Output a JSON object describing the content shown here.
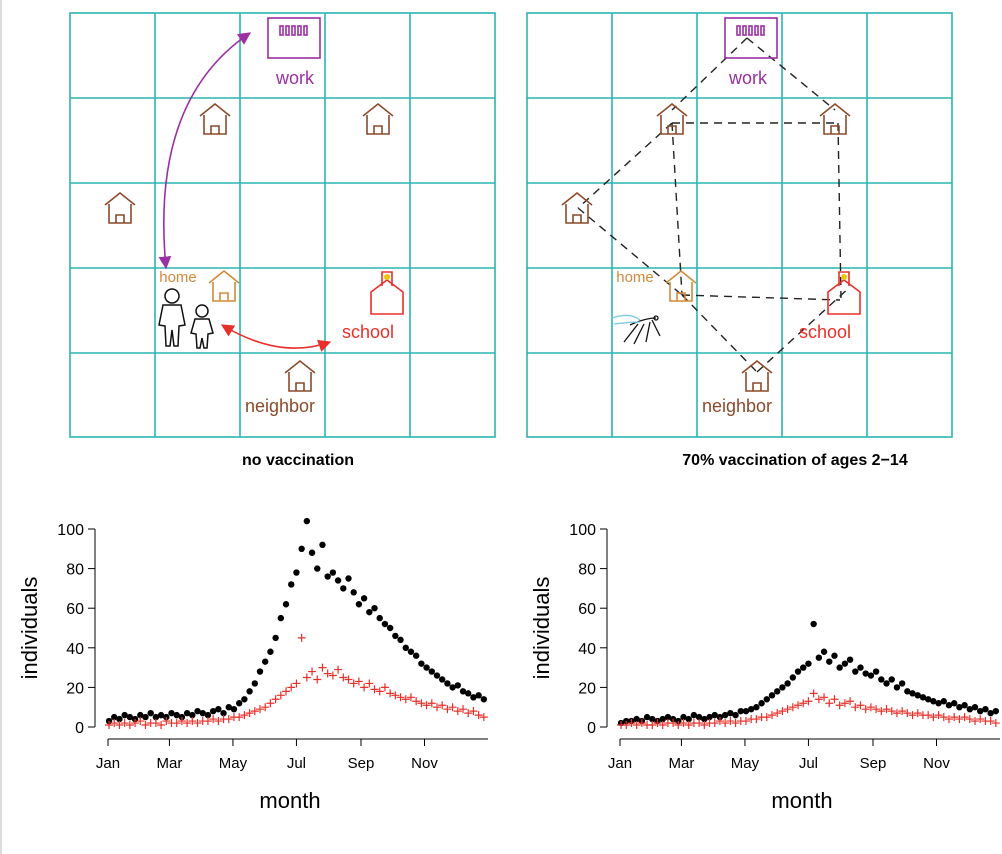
{
  "diagrams": [
    {
      "title": "no vaccination",
      "labels": {
        "work": "work",
        "home": "home",
        "school": "school",
        "neighbor": "neighbor"
      }
    },
    {
      "title": "70% vaccination of ages 2−14",
      "labels": {
        "work": "work",
        "home": "home",
        "school": "school",
        "neighbor": "neighbor"
      }
    }
  ],
  "chart_data": [
    {
      "type": "scatter",
      "xlabel": "month",
      "ylabel": "individuals",
      "xlim": [
        0,
        365
      ],
      "xticks": [
        {
          "value": 0,
          "label": "Jan"
        },
        {
          "value": 59,
          "label": "Mar"
        },
        {
          "value": 120,
          "label": "May"
        },
        {
          "value": 181,
          "label": "Jul"
        },
        {
          "value": 243,
          "label": "Sep"
        },
        {
          "value": 304,
          "label": "Nov"
        }
      ],
      "ylim": [
        0,
        105
      ],
      "yticks": [
        0,
        20,
        40,
        60,
        80,
        100
      ],
      "x": [
        1,
        6,
        11,
        16,
        21,
        26,
        31,
        36,
        41,
        46,
        51,
        56,
        61,
        66,
        71,
        76,
        81,
        86,
        91,
        96,
        101,
        106,
        111,
        116,
        121,
        126,
        131,
        136,
        141,
        146,
        151,
        156,
        161,
        166,
        171,
        176,
        181,
        186,
        191,
        196,
        201,
        206,
        211,
        216,
        221,
        226,
        231,
        236,
        241,
        246,
        251,
        256,
        261,
        266,
        271,
        276,
        281,
        286,
        291,
        296,
        301,
        306,
        311,
        316,
        321,
        326,
        331,
        336,
        341,
        346,
        351,
        356,
        361
      ],
      "series": [
        {
          "color": "#000000",
          "marker": "circle",
          "values": [
            3,
            5,
            4,
            6,
            5,
            4,
            6,
            5,
            7,
            5,
            6,
            5,
            7,
            6,
            5,
            7,
            6,
            8,
            7,
            6,
            8,
            9,
            7,
            10,
            9,
            12,
            14,
            18,
            22,
            28,
            33,
            38,
            45,
            55,
            62,
            72,
            78,
            90,
            104,
            88,
            80,
            92,
            76,
            78,
            74,
            70,
            75,
            68,
            62,
            65,
            58,
            60,
            55,
            52,
            50,
            46,
            44,
            40,
            38,
            36,
            32,
            30,
            28,
            26,
            24,
            22,
            20,
            21,
            18,
            17,
            15,
            16,
            14
          ]
        },
        {
          "color": "#e8302a",
          "marker": "plus",
          "values": [
            1,
            2,
            1,
            2,
            1,
            2,
            3,
            1,
            2,
            2,
            1,
            3,
            2,
            2,
            3,
            2,
            3,
            2,
            3,
            3,
            4,
            3,
            4,
            4,
            5,
            5,
            6,
            7,
            8,
            9,
            10,
            12,
            14,
            16,
            18,
            20,
            22,
            45,
            25,
            28,
            24,
            30,
            27,
            26,
            29,
            25,
            24,
            22,
            23,
            20,
            22,
            19,
            18,
            20,
            17,
            16,
            15,
            14,
            15,
            13,
            12,
            11,
            12,
            10,
            11,
            9,
            10,
            8,
            9,
            7,
            8,
            6,
            5
          ]
        }
      ]
    },
    {
      "type": "scatter",
      "xlabel": "month",
      "ylabel": "individuals",
      "xlim": [
        0,
        365
      ],
      "xticks": [
        {
          "value": 0,
          "label": "Jan"
        },
        {
          "value": 59,
          "label": "Mar"
        },
        {
          "value": 120,
          "label": "May"
        },
        {
          "value": 181,
          "label": "Jul"
        },
        {
          "value": 243,
          "label": "Sep"
        },
        {
          "value": 304,
          "label": "Nov"
        }
      ],
      "ylim": [
        0,
        105
      ],
      "yticks": [
        0,
        20,
        40,
        60,
        80,
        100
      ],
      "x": [
        1,
        6,
        11,
        16,
        21,
        26,
        31,
        36,
        41,
        46,
        51,
        56,
        61,
        66,
        71,
        76,
        81,
        86,
        91,
        96,
        101,
        106,
        111,
        116,
        121,
        126,
        131,
        136,
        141,
        146,
        151,
        156,
        161,
        166,
        171,
        176,
        181,
        186,
        191,
        196,
        201,
        206,
        211,
        216,
        221,
        226,
        231,
        236,
        241,
        246,
        251,
        256,
        261,
        266,
        271,
        276,
        281,
        286,
        291,
        296,
        301,
        306,
        311,
        316,
        321,
        326,
        331,
        336,
        341,
        346,
        351,
        356,
        361
      ],
      "series": [
        {
          "color": "#000000",
          "marker": "circle",
          "values": [
            2,
            3,
            3,
            4,
            3,
            5,
            4,
            3,
            4,
            5,
            4,
            3,
            5,
            4,
            6,
            5,
            4,
            5,
            6,
            5,
            6,
            7,
            6,
            8,
            8,
            9,
            10,
            12,
            14,
            16,
            18,
            20,
            22,
            25,
            28,
            30,
            32,
            52,
            35,
            38,
            33,
            36,
            30,
            32,
            34,
            28,
            30,
            27,
            26,
            28,
            24,
            22,
            24,
            20,
            22,
            18,
            17,
            16,
            15,
            14,
            13,
            12,
            13,
            11,
            12,
            10,
            11,
            9,
            10,
            8,
            9,
            7,
            8
          ]
        },
        {
          "color": "#e8302a",
          "marker": "plus",
          "values": [
            1,
            1,
            2,
            1,
            2,
            1,
            1,
            2,
            1,
            2,
            2,
            1,
            2,
            1,
            2,
            2,
            1,
            2,
            2,
            3,
            2,
            3,
            2,
            3,
            3,
            4,
            4,
            5,
            5,
            6,
            7,
            8,
            9,
            10,
            11,
            12,
            13,
            17,
            14,
            15,
            12,
            14,
            11,
            12,
            13,
            10,
            11,
            9,
            10,
            9,
            8,
            9,
            8,
            7,
            8,
            7,
            6,
            7,
            6,
            6,
            5,
            6,
            5,
            4,
            5,
            4,
            5,
            4,
            3,
            4,
            3,
            3,
            2
          ]
        }
      ]
    }
  ]
}
